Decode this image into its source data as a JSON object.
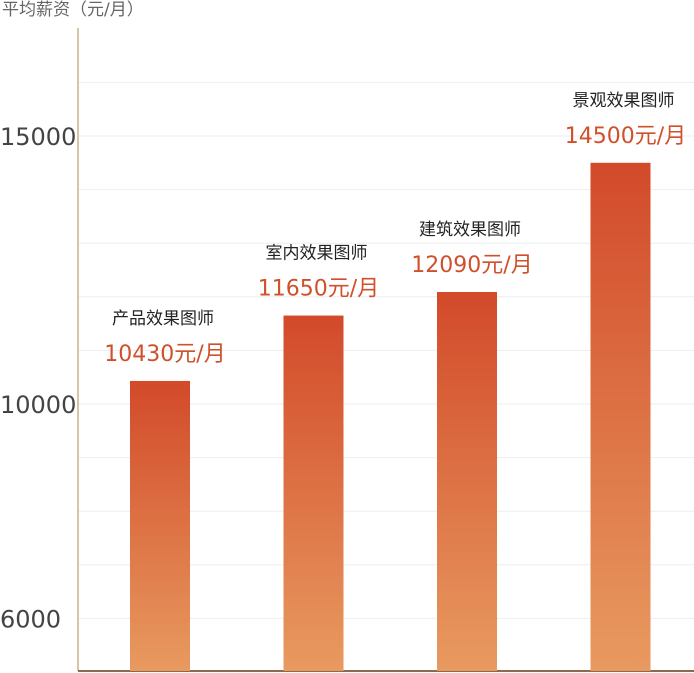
{
  "chart_data": {
    "type": "bar",
    "ylabel": "平均薪资（元/月）",
    "yticks": [
      6000,
      10000,
      15000
    ],
    "ylim": [
      4900,
      16950
    ],
    "grid": true,
    "categories": [
      "产品效果图师",
      "室内效果图师",
      "建筑效果图师",
      "景观效果图师"
    ],
    "values": [
      10430,
      11650,
      12090,
      14500
    ],
    "value_labels": [
      "10430元/月",
      "11650元/月",
      "12090元/月",
      "14500元/月"
    ],
    "colors": {
      "bar_top": "#d24a2a",
      "bar_bottom": "#e89a60",
      "value_text": "#d1502c",
      "y_axis": "#c9b48a",
      "x_axis": "#8a6a50",
      "grid": "#eeeeee"
    }
  }
}
